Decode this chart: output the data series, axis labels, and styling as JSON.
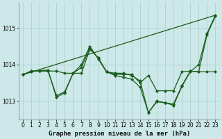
{
  "title": "Graphe pression niveau de la mer (hPa)",
  "bg_color": "#cce8e8",
  "grid_color": "#aacccc",
  "line_color": "#1a5c1a",
  "xlim": [
    -0.5,
    23.5
  ],
  "ylim": [
    1012.5,
    1015.7
  ],
  "yticks": [
    1013,
    1014,
    1015
  ],
  "xticks": [
    0,
    1,
    2,
    3,
    4,
    5,
    6,
    7,
    8,
    9,
    10,
    11,
    12,
    13,
    14,
    15,
    16,
    17,
    18,
    19,
    20,
    21,
    22,
    23
  ],
  "series": [
    {
      "x": [
        0,
        1,
        2,
        3,
        4,
        5,
        6,
        7,
        8,
        9,
        10,
        11,
        12,
        13,
        14,
        15,
        16,
        17,
        18,
        19,
        20,
        21,
        22,
        23
      ],
      "y": [
        1013.72,
        1013.82,
        1013.82,
        1013.83,
        1013.15,
        1013.25,
        1013.76,
        1013.76,
        1014.42,
        1014.18,
        1013.8,
        1013.76,
        1013.76,
        1013.7,
        1013.55,
        1012.68,
        1012.98,
        1012.95,
        1012.88,
        1013.4,
        1013.8,
        1014.0,
        1014.85,
        1015.35
      ],
      "marker": true
    },
    {
      "x": [
        0,
        1,
        2,
        3,
        4,
        5,
        6,
        7,
        8,
        9,
        10,
        11,
        12,
        13,
        14,
        15,
        16,
        17,
        18,
        19,
        20,
        21,
        22,
        23
      ],
      "y": [
        1013.72,
        1013.82,
        1013.82,
        1013.82,
        1013.82,
        1013.76,
        1013.76,
        1013.92,
        1014.45,
        1014.18,
        1013.8,
        1013.73,
        1013.73,
        1013.73,
        1013.5,
        1013.7,
        1013.28,
        1013.28,
        1013.28,
        1013.8,
        1013.82,
        1013.8,
        1013.8,
        1013.8
      ],
      "marker": true
    },
    {
      "x": [
        0,
        23
      ],
      "y": [
        1013.72,
        1015.35
      ],
      "marker": false
    },
    {
      "x": [
        0,
        1,
        2,
        3,
        4,
        5,
        6,
        7,
        8,
        9,
        10,
        11,
        12,
        13,
        14,
        15,
        16,
        17,
        18,
        19,
        20,
        21,
        22,
        23
      ],
      "y": [
        1013.72,
        1013.8,
        1013.83,
        1013.85,
        1013.1,
        1013.22,
        1013.76,
        1014.0,
        1014.5,
        1014.15,
        1013.8,
        1013.7,
        1013.65,
        1013.6,
        1013.38,
        1012.68,
        1013.0,
        1012.95,
        1012.92,
        1013.42,
        1013.82,
        1013.8,
        1014.82,
        1015.32
      ],
      "marker": true
    }
  ],
  "title_fontsize": 6.5,
  "tick_fontsize": 5.5
}
